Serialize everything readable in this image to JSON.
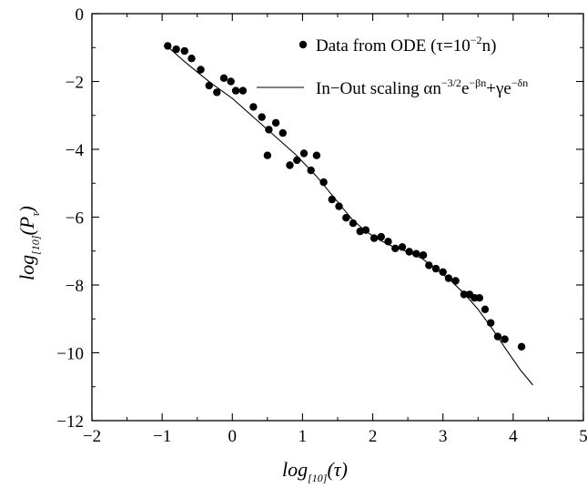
{
  "chart_data": {
    "type": "scatter",
    "xlim": [
      -2,
      5
    ],
    "ylim": [
      -12,
      0
    ],
    "x_ticks": [
      -2,
      -1,
      0,
      1,
      2,
      3,
      4,
      5
    ],
    "y_ticks": [
      0,
      -2,
      -4,
      -6,
      -8,
      -10,
      -12
    ],
    "x_tick_labels": [
      "−2",
      "−1",
      "0",
      "1",
      "2",
      "3",
      "4",
      "5"
    ],
    "y_tick_labels": [
      "0",
      "−2",
      "−4",
      "−6",
      "−8",
      "−10",
      "−12"
    ],
    "xlabel": {
      "main": "log",
      "sub": "[10]",
      "arg": "(τ)"
    },
    "ylabel": {
      "main": "log",
      "sub": "[10]",
      "arg_open": "(P",
      "arg_sub": "τ",
      "arg_close": ")"
    },
    "legend": {
      "placement": "top-right",
      "markers_entry": {
        "text": "Data from ODE (τ=10",
        "sup": "−2",
        "tail": "n)"
      },
      "line_entry": {
        "text": "In−Out scaling αn",
        "sup1": "−3/2",
        "mid1": "e",
        "sup2": "−βn",
        "mid2": "+γe",
        "sup3": "−δn"
      }
    },
    "series": [
      {
        "style": "markers",
        "points": [
          [
            -0.92,
            -0.95
          ],
          [
            -0.8,
            -1.05
          ],
          [
            -0.68,
            -1.1
          ],
          [
            -0.58,
            -1.32
          ],
          [
            -0.45,
            -1.65
          ],
          [
            -0.33,
            -2.12
          ],
          [
            -0.22,
            -2.32
          ],
          [
            -0.12,
            -1.9
          ],
          [
            -0.02,
            -2.0
          ],
          [
            0.05,
            -2.27
          ],
          [
            0.15,
            -2.27
          ],
          [
            0.3,
            -2.75
          ],
          [
            0.42,
            -3.05
          ],
          [
            0.52,
            -3.42
          ],
          [
            0.5,
            -4.18
          ],
          [
            0.62,
            -3.22
          ],
          [
            0.72,
            -3.52
          ],
          [
            0.82,
            -4.47
          ],
          [
            0.92,
            -4.32
          ],
          [
            1.02,
            -4.12
          ],
          [
            1.12,
            -4.62
          ],
          [
            1.2,
            -4.18
          ],
          [
            1.3,
            -4.97
          ],
          [
            1.42,
            -5.48
          ],
          [
            1.52,
            -5.68
          ],
          [
            1.62,
            -6.02
          ],
          [
            1.72,
            -6.18
          ],
          [
            1.82,
            -6.42
          ],
          [
            1.9,
            -6.38
          ],
          [
            2.02,
            -6.62
          ],
          [
            2.12,
            -6.58
          ],
          [
            2.22,
            -6.72
          ],
          [
            2.32,
            -6.92
          ],
          [
            2.42,
            -6.88
          ],
          [
            2.52,
            -7.02
          ],
          [
            2.62,
            -7.08
          ],
          [
            2.72,
            -7.12
          ],
          [
            2.8,
            -7.42
          ],
          [
            2.9,
            -7.52
          ],
          [
            3.0,
            -7.62
          ],
          [
            3.08,
            -7.8
          ],
          [
            3.18,
            -7.88
          ],
          [
            3.3,
            -8.28
          ],
          [
            3.38,
            -8.28
          ],
          [
            3.45,
            -8.38
          ],
          [
            3.52,
            -8.38
          ],
          [
            3.6,
            -8.72
          ],
          [
            3.68,
            -9.12
          ],
          [
            3.78,
            -9.52
          ],
          [
            3.88,
            -9.6
          ],
          [
            4.12,
            -9.82
          ]
        ]
      },
      {
        "style": "line",
        "points": [
          [
            -0.95,
            -0.92
          ],
          [
            -0.7,
            -1.38
          ],
          [
            -0.5,
            -1.72
          ],
          [
            -0.3,
            -2.05
          ],
          [
            0.0,
            -2.5
          ],
          [
            0.3,
            -3.05
          ],
          [
            0.6,
            -3.6
          ],
          [
            0.9,
            -4.15
          ],
          [
            1.2,
            -4.8
          ],
          [
            1.5,
            -5.55
          ],
          [
            1.7,
            -6.05
          ],
          [
            1.9,
            -6.42
          ],
          [
            2.1,
            -6.68
          ],
          [
            2.3,
            -6.88
          ],
          [
            2.5,
            -7.02
          ],
          [
            2.7,
            -7.22
          ],
          [
            2.9,
            -7.52
          ],
          [
            3.1,
            -7.85
          ],
          [
            3.3,
            -8.25
          ],
          [
            3.5,
            -8.72
          ],
          [
            3.7,
            -9.28
          ],
          [
            3.9,
            -9.9
          ],
          [
            4.1,
            -10.5
          ],
          [
            4.28,
            -10.95
          ]
        ]
      }
    ]
  }
}
